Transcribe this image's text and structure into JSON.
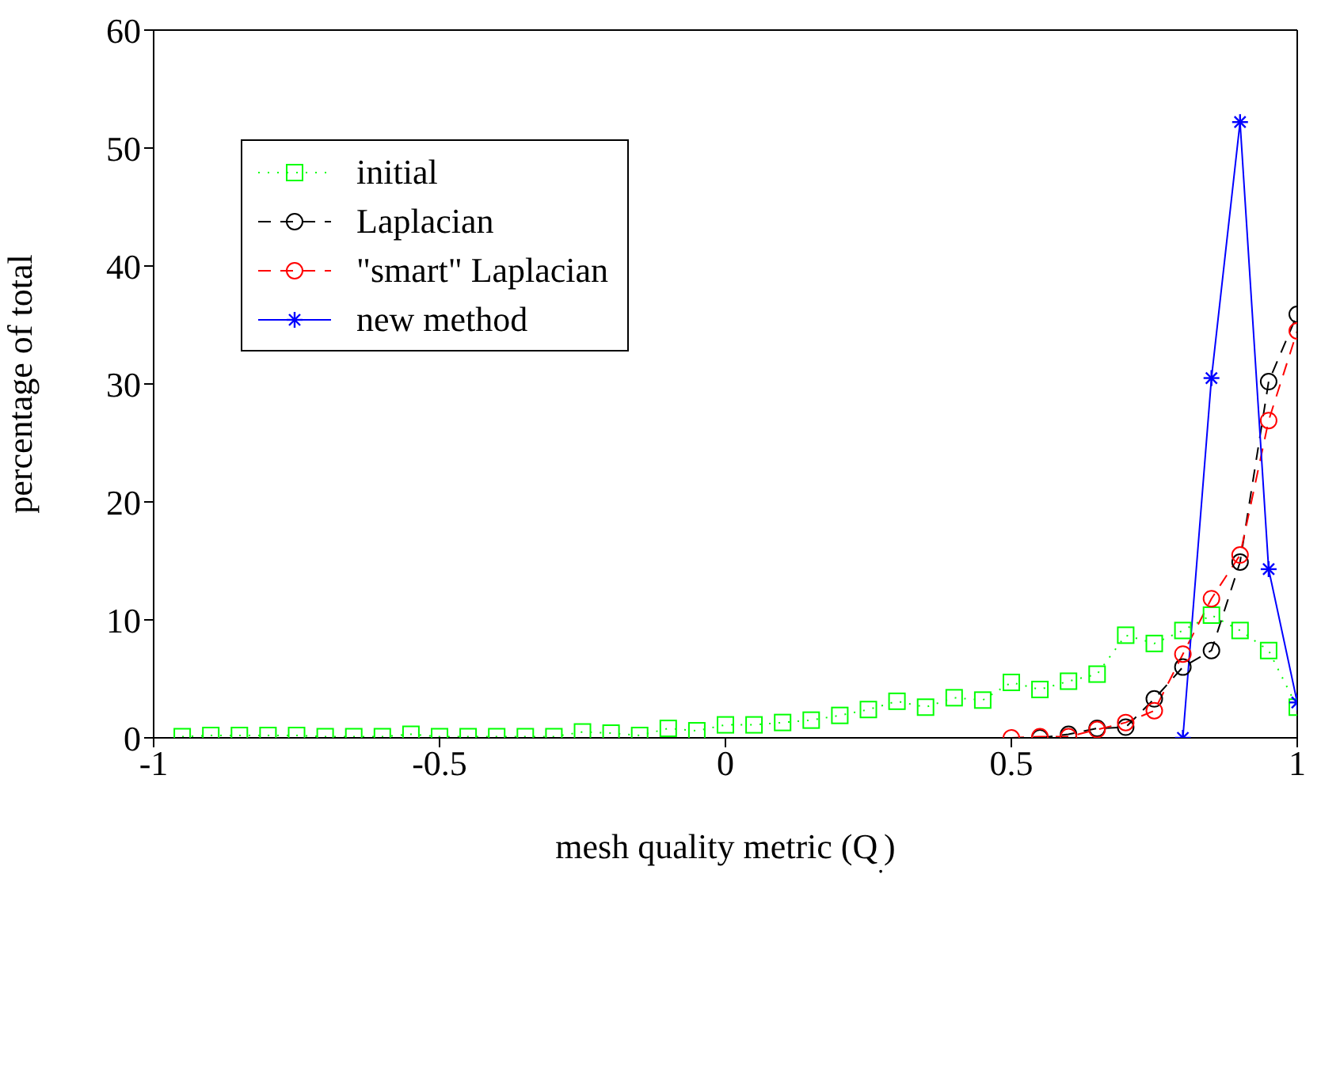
{
  "chart_data": {
    "type": "line",
    "xlabel": "mesh quality metric (Q$_{.}$)",
    "ylabel": "percentage of total",
    "xlim": [
      -1,
      1
    ],
    "xticks": [
      -1,
      -0.5,
      0,
      0.5,
      1
    ],
    "ylim": [
      0,
      60
    ],
    "yticks": [
      0,
      10,
      20,
      30,
      40,
      50,
      60
    ],
    "grid": false,
    "legend": "top left",
    "series": [
      {
        "name": "initial",
        "color": "#00ff00",
        "marker": "square",
        "line_style": "dotted",
        "x": [
          -0.95,
          -0.9,
          -0.85,
          -0.8,
          -0.75,
          -0.7,
          -0.65,
          -0.6,
          -0.55,
          -0.5,
          -0.45,
          -0.4,
          -0.35,
          -0.3,
          -0.25,
          -0.2,
          -0.15,
          -0.1,
          -0.05,
          0,
          0.05,
          0.1,
          0.15,
          0.2,
          0.25,
          0.3,
          0.35,
          0.4,
          0.45,
          0.5,
          0.55,
          0.6,
          0.65,
          0.7,
          0.75,
          0.8,
          0.85,
          0.9,
          0.95,
          1.0
        ],
        "values": [
          0.1,
          0.2,
          0.2,
          0.2,
          0.2,
          0.1,
          0.1,
          0.1,
          0.3,
          0.1,
          0.1,
          0.1,
          0.1,
          0.1,
          0.5,
          0.4,
          0.2,
          0.8,
          0.6,
          1.1,
          1.1,
          1.3,
          1.5,
          1.9,
          2.4,
          3.1,
          2.6,
          3.4,
          3.2,
          4.7,
          4.1,
          4.8,
          5.4,
          8.7,
          8.0,
          9.1,
          10.4,
          9.1,
          7.4,
          2.6
        ]
      },
      {
        "name": "Laplacian",
        "color": "#000000",
        "marker": "circle",
        "line_style": "dashed",
        "x": [
          0.55,
          0.6,
          0.65,
          0.7,
          0.75,
          0.8,
          0.85,
          0.9,
          0.95,
          1.0
        ],
        "values": [
          0,
          0.3,
          0.8,
          0.9,
          3.3,
          6.0,
          7.4,
          14.9,
          30.2,
          35.9
        ]
      },
      {
        "name": "\"smart\" Laplacian",
        "color": "#ff0000",
        "marker": "circle",
        "line_style": "dashed",
        "x": [
          0.5,
          0.55,
          0.6,
          0.65,
          0.7,
          0.75,
          0.8,
          0.85,
          0.9,
          0.95,
          1.0
        ],
        "values": [
          0,
          0.1,
          0.1,
          0.7,
          1.3,
          2.3,
          7.1,
          11.8,
          15.5,
          26.9,
          34.5
        ]
      },
      {
        "name": "new method",
        "color": "#0000ff",
        "marker": "cross",
        "line_style": "solid",
        "x": [
          0.8,
          0.85,
          0.9,
          0.95,
          1.0
        ],
        "values": [
          0,
          30.5,
          52.2,
          14.3,
          3.0
        ]
      }
    ]
  }
}
